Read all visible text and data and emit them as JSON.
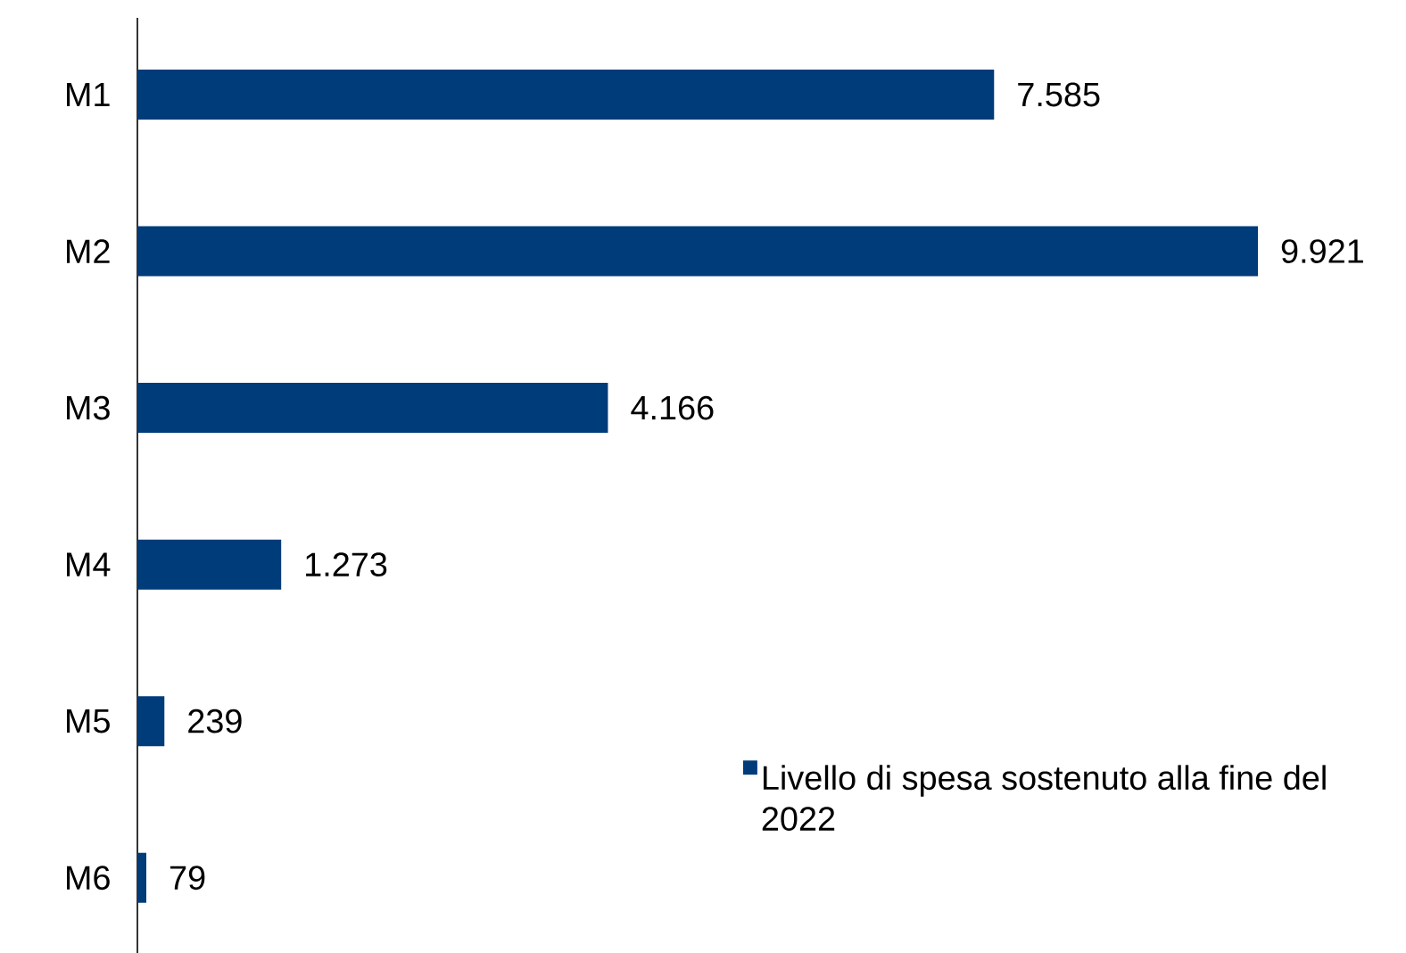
{
  "chart_data": {
    "type": "bar",
    "orientation": "horizontal",
    "categories": [
      "M1",
      "M2",
      "M3",
      "M4",
      "M5",
      "M6"
    ],
    "series": [
      {
        "name": "Livello di spesa sostenuto alla fine del 2022",
        "color": "#003b7a",
        "values": [
          7585,
          9921,
          4166,
          1273,
          239,
          79
        ],
        "value_labels": [
          "7.585",
          "9.921",
          "4.166",
          "1.273",
          "239",
          "79"
        ]
      }
    ],
    "legend": "bottom right"
  }
}
